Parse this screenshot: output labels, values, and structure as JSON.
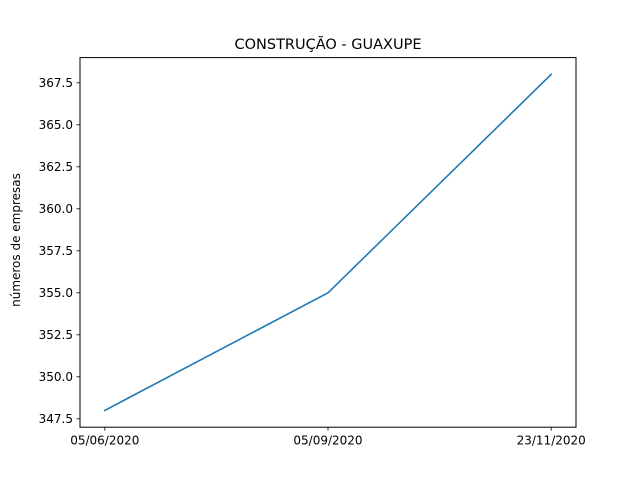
{
  "chart_data": {
    "type": "line",
    "title": "CONSTRUÇÃO - GUAXUPE",
    "xlabel": "",
    "ylabel": "números de empresas",
    "x": [
      "05/06/2020",
      "05/09/2020",
      "23/11/2020"
    ],
    "series": [
      {
        "values": [
          348,
          355,
          368
        ],
        "color": "#1f77b4"
      }
    ],
    "yticks": [
      347.5,
      350.0,
      352.5,
      355.0,
      357.5,
      360.0,
      362.5,
      365.0,
      367.5
    ],
    "ytick_labels": [
      "347.5",
      "350.0",
      "352.5",
      "355.0",
      "357.5",
      "360.0",
      "362.5",
      "365.0",
      "367.5"
    ],
    "ylim": [
      347,
      369
    ],
    "grid": false,
    "legend": "none"
  }
}
